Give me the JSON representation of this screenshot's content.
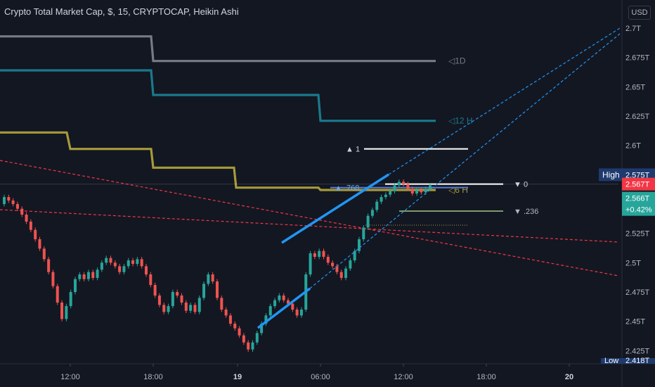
{
  "header": {
    "title": "Crypto Total Market Cap, $, 15, CRYPTOCAP, Heikin Ashi",
    "currency": "USD"
  },
  "colors": {
    "background": "#131722",
    "up": "#26a69a",
    "down": "#ef5350",
    "trend_solid": "#2196f3",
    "trend_dashed": "#2196f3",
    "resistance_dashed": "#f23645",
    "tf_1d": "#787b86",
    "tf_12h": "#1a7a8c",
    "tf_6h": "#a69a3a",
    "fib": "#ffffff",
    "fib_236": "#7f9a6a",
    "axis_text": "#b2b5be"
  },
  "chart_data": {
    "type": "candlestick",
    "style": "Heikin Ashi",
    "interval": "15",
    "y_axis": {
      "min": 2.418,
      "max": 2.7,
      "ticks": [
        {
          "value": 2.7,
          "label": "2.7T"
        },
        {
          "value": 2.675,
          "label": "2.675T"
        },
        {
          "value": 2.65,
          "label": "2.65T"
        },
        {
          "value": 2.625,
          "label": "2.625T"
        },
        {
          "value": 2.6,
          "label": "2.6T"
        },
        {
          "value": 2.525,
          "label": "2.525T"
        },
        {
          "value": 2.5,
          "label": "2.5T"
        },
        {
          "value": 2.475,
          "label": "2.475T"
        },
        {
          "value": 2.45,
          "label": "2.45T"
        },
        {
          "value": 2.425,
          "label": "2.425T"
        }
      ]
    },
    "x_axis": {
      "ticks": [
        "12:00",
        "18:00",
        "19",
        "06:00",
        "12:00",
        "18:00",
        "20"
      ]
    },
    "price_labels": [
      {
        "name": "High",
        "text": "High",
        "value": "2.575T",
        "bg": "#1e3a6e"
      },
      {
        "name": "last",
        "text": "",
        "value": "2.567T",
        "bg": "#f23645"
      },
      {
        "name": "current",
        "text": "",
        "value": "2.566T",
        "bg": "#26a69a"
      },
      {
        "name": "change",
        "text": "",
        "value": "+0.42%",
        "bg": "#26a69a"
      },
      {
        "name": "Low",
        "text": "Low",
        "value": "2.418T",
        "bg": "#1e3a6e"
      }
    ],
    "timeframe_levels": [
      {
        "label": "1D",
        "values": [
          2.693,
          2.672
        ]
      },
      {
        "label": "12 H",
        "values": [
          2.664,
          2.643,
          2.621
        ]
      },
      {
        "label": "6 H",
        "values": [
          2.611,
          2.597,
          2.581,
          2.564,
          2.562
        ]
      }
    ],
    "fib_levels": [
      {
        "label": "1",
        "value": 2.597
      },
      {
        "label": "0",
        "value": 2.567
      },
      {
        "label": ".768",
        "value": 2.564
      },
      {
        "label": ".236",
        "value": 2.544
      }
    ],
    "candles": [
      {
        "o": 2.55,
        "c": 2.556
      },
      {
        "o": 2.556,
        "c": 2.553
      },
      {
        "o": 2.553,
        "c": 2.55
      },
      {
        "o": 2.55,
        "c": 2.546
      },
      {
        "o": 2.546,
        "c": 2.541
      },
      {
        "o": 2.541,
        "c": 2.535
      },
      {
        "o": 2.535,
        "c": 2.528
      },
      {
        "o": 2.528,
        "c": 2.52
      },
      {
        "o": 2.52,
        "c": 2.512
      },
      {
        "o": 2.512,
        "c": 2.503
      },
      {
        "o": 2.503,
        "c": 2.492
      },
      {
        "o": 2.492,
        "c": 2.48
      },
      {
        "o": 2.48,
        "c": 2.466
      },
      {
        "o": 2.466,
        "c": 2.452
      },
      {
        "o": 2.452,
        "c": 2.463
      },
      {
        "o": 2.463,
        "c": 2.475
      },
      {
        "o": 2.475,
        "c": 2.486
      },
      {
        "o": 2.486,
        "c": 2.49
      },
      {
        "o": 2.49,
        "c": 2.486
      },
      {
        "o": 2.486,
        "c": 2.492
      },
      {
        "o": 2.492,
        "c": 2.487
      },
      {
        "o": 2.487,
        "c": 2.494
      },
      {
        "o": 2.494,
        "c": 2.5
      },
      {
        "o": 2.5,
        "c": 2.504
      },
      {
        "o": 2.504,
        "c": 2.5
      },
      {
        "o": 2.5,
        "c": 2.497
      },
      {
        "o": 2.497,
        "c": 2.492
      },
      {
        "o": 2.492,
        "c": 2.497
      },
      {
        "o": 2.497,
        "c": 2.502
      },
      {
        "o": 2.502,
        "c": 2.499
      },
      {
        "o": 2.499,
        "c": 2.503
      },
      {
        "o": 2.503,
        "c": 2.497
      },
      {
        "o": 2.497,
        "c": 2.49
      },
      {
        "o": 2.49,
        "c": 2.481
      },
      {
        "o": 2.481,
        "c": 2.472
      },
      {
        "o": 2.472,
        "c": 2.464
      },
      {
        "o": 2.464,
        "c": 2.458
      },
      {
        "o": 2.458,
        "c": 2.463
      },
      {
        "o": 2.463,
        "c": 2.475
      },
      {
        "o": 2.475,
        "c": 2.472
      },
      {
        "o": 2.472,
        "c": 2.466
      },
      {
        "o": 2.466,
        "c": 2.459
      },
      {
        "o": 2.459,
        "c": 2.464
      },
      {
        "o": 2.464,
        "c": 2.458
      },
      {
        "o": 2.458,
        "c": 2.47
      },
      {
        "o": 2.47,
        "c": 2.482
      },
      {
        "o": 2.482,
        "c": 2.49
      },
      {
        "o": 2.49,
        "c": 2.484
      },
      {
        "o": 2.484,
        "c": 2.47
      },
      {
        "o": 2.47,
        "c": 2.46
      },
      {
        "o": 2.46,
        "c": 2.455
      },
      {
        "o": 2.455,
        "c": 2.448
      },
      {
        "o": 2.448,
        "c": 2.444
      },
      {
        "o": 2.444,
        "c": 2.438
      },
      {
        "o": 2.438,
        "c": 2.432
      },
      {
        "o": 2.432,
        "c": 2.426
      },
      {
        "o": 2.426,
        "c": 2.432
      },
      {
        "o": 2.432,
        "c": 2.44
      },
      {
        "o": 2.44,
        "c": 2.448
      },
      {
        "o": 2.448,
        "c": 2.455
      },
      {
        "o": 2.455,
        "c": 2.463
      },
      {
        "o": 2.463,
        "c": 2.468
      },
      {
        "o": 2.468,
        "c": 2.472
      },
      {
        "o": 2.472,
        "c": 2.468
      },
      {
        "o": 2.468,
        "c": 2.465
      },
      {
        "o": 2.465,
        "c": 2.46
      },
      {
        "o": 2.46,
        "c": 2.455
      },
      {
        "o": 2.455,
        "c": 2.46
      },
      {
        "o": 2.46,
        "c": 2.49
      },
      {
        "o": 2.49,
        "c": 2.508
      },
      {
        "o": 2.508,
        "c": 2.505
      },
      {
        "o": 2.505,
        "c": 2.51
      },
      {
        "o": 2.51,
        "c": 2.505
      },
      {
        "o": 2.505,
        "c": 2.5
      },
      {
        "o": 2.5,
        "c": 2.497
      },
      {
        "o": 2.497,
        "c": 2.492
      },
      {
        "o": 2.492,
        "c": 2.487
      },
      {
        "o": 2.487,
        "c": 2.495
      },
      {
        "o": 2.495,
        "c": 2.502
      },
      {
        "o": 2.502,
        "c": 2.51
      },
      {
        "o": 2.51,
        "c": 2.52
      },
      {
        "o": 2.52,
        "c": 2.53
      },
      {
        "o": 2.53,
        "c": 2.54
      },
      {
        "o": 2.54,
        "c": 2.545
      },
      {
        "o": 2.545,
        "c": 2.552
      },
      {
        "o": 2.552,
        "c": 2.556
      },
      {
        "o": 2.556,
        "c": 2.558
      },
      {
        "o": 2.558,
        "c": 2.561
      },
      {
        "o": 2.561,
        "c": 2.566
      },
      {
        "o": 2.566,
        "c": 2.569
      },
      {
        "o": 2.569,
        "c": 2.567
      },
      {
        "o": 2.567,
        "c": 2.563
      },
      {
        "o": 2.563,
        "c": 2.559
      },
      {
        "o": 2.559,
        "c": 2.562
      },
      {
        "o": 2.562,
        "c": 2.56
      },
      {
        "o": 2.56,
        "c": 2.563
      },
      {
        "o": 2.563,
        "c": 2.566
      }
    ],
    "trendlines": [
      {
        "style": "solid",
        "from": [
          0.0,
          2.526
        ],
        "to": [
          1.0,
          2.573
        ]
      },
      {
        "style": "solid",
        "from": [
          0.0,
          2.451
        ],
        "to": [
          1.0,
          2.488
        ]
      }
    ]
  }
}
